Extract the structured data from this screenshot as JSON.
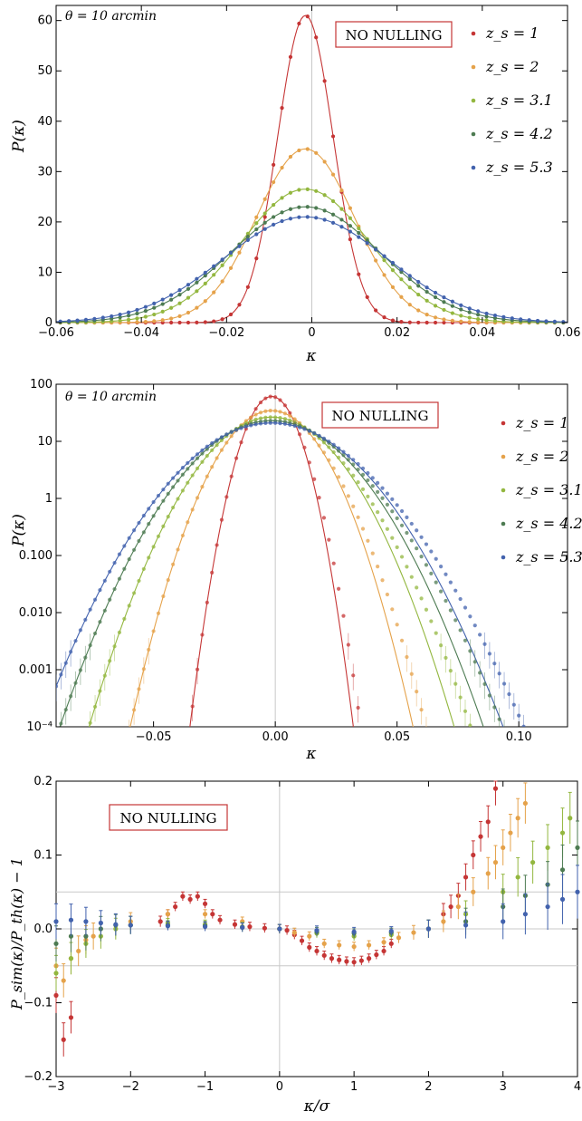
{
  "chart_data": [
    {
      "type": "scatter",
      "title": "",
      "annotation": "θ = 10 arcmin",
      "boxed_label": "NO NULLING",
      "xlabel": "κ",
      "ylabel": "P(κ)",
      "xlim": [
        -0.06,
        0.06
      ],
      "ylim": [
        0,
        63
      ],
      "xscale": "linear",
      "yscale": "linear",
      "grid": false,
      "legend_position": "top-right",
      "xticks": [
        -0.06,
        -0.04,
        -0.02,
        0,
        0.02,
        0.04,
        0.06
      ],
      "xtick_labels": [
        "−0.06",
        "−0.04",
        "−0.02",
        "0",
        "0.02",
        "0.04",
        "0.06"
      ],
      "yticks": [
        0,
        10,
        20,
        30,
        40,
        50,
        60
      ],
      "ytick_labels": [
        "0",
        "10",
        "20",
        "30",
        "40",
        "50",
        "60"
      ],
      "series": [
        {
          "name": "z_s = 1",
          "legend": "zs1",
          "color": "#c53535",
          "peak": 61,
          "mean": -0.0015,
          "sigma": 0.0065
        },
        {
          "name": "z_s = 2",
          "legend": "zs2",
          "color": "#e5a24a",
          "peak": 34.5,
          "mean": -0.0015,
          "sigma": 0.0115
        },
        {
          "name": "z_s = 3.1",
          "legend": "zs3",
          "color": "#93b73f",
          "peak": 26.5,
          "mean": -0.0015,
          "sigma": 0.015
        },
        {
          "name": "z_s = 4.2",
          "legend": "zs4",
          "color": "#4d7b52",
          "peak": 23,
          "mean": -0.0015,
          "sigma": 0.0175
        },
        {
          "name": "z_s = 5.3",
          "legend": "zs5",
          "color": "#4262ad",
          "peak": 21,
          "mean": -0.0015,
          "sigma": 0.0192
        }
      ]
    },
    {
      "type": "scatter",
      "title": "",
      "annotation": "θ = 10 arcmin",
      "boxed_label": "NO NULLING",
      "xlabel": "κ",
      "ylabel": "P(κ)",
      "xlim": [
        -0.09,
        0.12
      ],
      "ylim": [
        0.0001,
        100
      ],
      "xscale": "linear",
      "yscale": "log",
      "grid": false,
      "legend_position": "top-right",
      "xticks": [
        -0.05,
        0,
        0.05,
        0.1
      ],
      "xtick_labels": [
        "−0.05",
        "0.00",
        "0.05",
        "0.10"
      ],
      "yticks": [
        0.0001,
        0.001,
        0.01,
        0.1,
        1,
        10,
        100
      ],
      "ytick_labels": [
        "10⁻⁴",
        "0.001",
        "0.010",
        "0.100",
        "1",
        "10",
        "100"
      ],
      "series": [
        {
          "name": "z_s = 1",
          "color": "#c53535",
          "peak": 61,
          "mean": -0.0015,
          "sigma": 0.0065
        },
        {
          "name": "z_s = 2",
          "color": "#e5a24a",
          "peak": 34.5,
          "mean": -0.0015,
          "sigma": 0.0115
        },
        {
          "name": "z_s = 3.1",
          "color": "#93b73f",
          "peak": 26.5,
          "mean": -0.0015,
          "sigma": 0.015
        },
        {
          "name": "z_s = 4.2",
          "color": "#4d7b52",
          "peak": 23,
          "mean": -0.0015,
          "sigma": 0.0175
        },
        {
          "name": "z_s = 5.3",
          "color": "#4262ad",
          "peak": 21,
          "mean": -0.0015,
          "sigma": 0.0192
        }
      ]
    },
    {
      "type": "scatter",
      "title": "",
      "boxed_label": "NO NULLING",
      "xlabel": "κ/σ",
      "ylabel": "P_sim(κ)/P_th(κ) − 1",
      "xlim": [
        -3,
        4
      ],
      "ylim": [
        -0.2,
        0.2
      ],
      "xscale": "linear",
      "yscale": "linear",
      "grid": false,
      "reference_lines": [
        0.05,
        0,
        -0.05
      ],
      "xticks": [
        -3,
        -2,
        -1,
        0,
        1,
        2,
        3,
        4
      ],
      "xtick_labels": [
        "−3",
        "−2",
        "−1",
        "0",
        "1",
        "2",
        "3",
        "4"
      ],
      "yticks": [
        -0.2,
        -0.1,
        0,
        0.1,
        0.2
      ],
      "ytick_labels": [
        "−0.2",
        "−0.1",
        "0.0",
        "0.1",
        "0.2"
      ],
      "series": [
        {
          "name": "z_s = 1",
          "color": "#c53535",
          "x": [
            -3.0,
            -2.9,
            -2.8,
            -1.6,
            -1.5,
            -1.4,
            -1.3,
            -1.2,
            -1.1,
            -1.0,
            -0.9,
            -0.8,
            -0.6,
            -0.4,
            -0.2,
            0.0,
            0.1,
            0.2,
            0.3,
            0.4,
            0.5,
            0.6,
            0.7,
            0.8,
            0.9,
            1.0,
            1.1,
            1.2,
            1.3,
            1.4,
            1.5,
            2.2,
            2.3,
            2.4,
            2.5,
            2.6,
            2.7,
            2.8,
            2.9
          ],
          "y": [
            -0.09,
            -0.15,
            -0.12,
            0.01,
            0.02,
            0.03,
            0.044,
            0.04,
            0.044,
            0.034,
            0.02,
            0.012,
            0.006,
            0.003,
            0.001,
            0.0,
            -0.002,
            -0.008,
            -0.016,
            -0.025,
            -0.03,
            -0.036,
            -0.04,
            -0.042,
            -0.044,
            -0.045,
            -0.043,
            -0.04,
            -0.035,
            -0.03,
            -0.02,
            0.02,
            0.03,
            0.045,
            0.07,
            0.1,
            0.125,
            0.145,
            0.19
          ]
        },
        {
          "name": "z_s = 2",
          "color": "#e5a24a",
          "x": [
            -3.0,
            -2.9,
            -2.8,
            -2.7,
            -2.6,
            -2.5,
            -2.0,
            -1.5,
            -1.0,
            -0.5,
            0.0,
            0.2,
            0.4,
            0.6,
            0.8,
            1.0,
            1.2,
            1.4,
            1.6,
            1.8,
            2.0,
            2.2,
            2.4,
            2.6,
            2.8,
            2.9,
            3.0,
            3.1,
            3.2,
            3.3
          ],
          "y": [
            -0.05,
            -0.07,
            -0.04,
            -0.03,
            -0.015,
            -0.01,
            0.01,
            0.02,
            0.02,
            0.01,
            0.0,
            -0.005,
            -0.01,
            -0.02,
            -0.022,
            -0.024,
            -0.022,
            -0.018,
            -0.012,
            -0.005,
            0.0,
            0.01,
            0.03,
            0.05,
            0.075,
            0.09,
            0.11,
            0.13,
            0.15,
            0.17
          ]
        },
        {
          "name": "z_s = 3.1",
          "color": "#93b73f",
          "x": [
            -3.0,
            -2.8,
            -2.6,
            -2.4,
            -2.2,
            -2.0,
            -1.5,
            -1.0,
            -0.5,
            0.0,
            0.5,
            1.0,
            1.5,
            2.0,
            2.5,
            3.0,
            3.2,
            3.4,
            3.6,
            3.8,
            3.9
          ],
          "y": [
            -0.06,
            -0.04,
            -0.02,
            -0.01,
            0.0,
            0.005,
            0.008,
            0.006,
            0.003,
            0.0,
            -0.006,
            -0.01,
            -0.008,
            0.0,
            0.02,
            0.05,
            0.07,
            0.09,
            0.11,
            0.13,
            0.15
          ]
        },
        {
          "name": "z_s = 4.2",
          "color": "#4d7b52",
          "x": [
            -3.0,
            -2.8,
            -2.6,
            -2.4,
            -2.2,
            -2.0,
            -1.5,
            -1.0,
            -0.5,
            0.0,
            0.5,
            1.0,
            1.5,
            2.0,
            2.5,
            3.0,
            3.3,
            3.6,
            3.8,
            4.0
          ],
          "y": [
            -0.02,
            -0.01,
            -0.01,
            0.0,
            0.005,
            0.005,
            0.005,
            0.004,
            0.002,
            0.0,
            -0.004,
            -0.006,
            -0.005,
            0.0,
            0.01,
            0.03,
            0.045,
            0.06,
            0.08,
            0.11
          ]
        },
        {
          "name": "z_s = 5.3",
          "color": "#4262ad",
          "x": [
            -3.0,
            -2.8,
            -2.6,
            -2.4,
            -2.2,
            -2.0,
            -1.5,
            -1.0,
            -0.5,
            0.0,
            0.5,
            1.0,
            1.5,
            2.0,
            2.5,
            3.0,
            3.3,
            3.6,
            3.8,
            4.0
          ],
          "y": [
            0.01,
            0.012,
            0.01,
            0.008,
            0.006,
            0.005,
            0.004,
            0.003,
            0.002,
            0.0,
            -0.002,
            -0.004,
            -0.003,
            0.0,
            0.005,
            0.01,
            0.02,
            0.03,
            0.04,
            0.05
          ]
        }
      ]
    }
  ]
}
